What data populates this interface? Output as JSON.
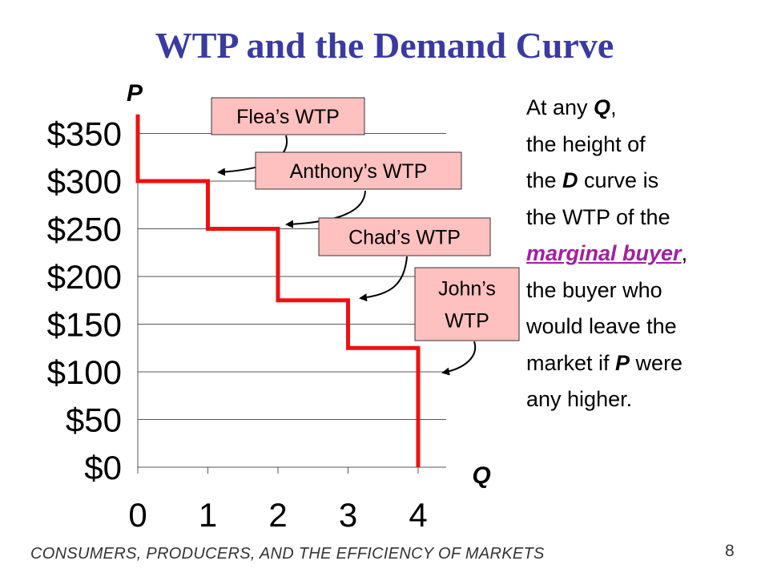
{
  "slide": {
    "title": "WTP and the Demand Curve",
    "footer": "CONSUMERS, PRODUCERS, AND THE EFFICIENCY OF MARKETS",
    "slide_number": "8"
  },
  "explanation": {
    "line1_pre": "At any ",
    "line1_q": "Q",
    "line1_post": ",",
    "line2": "the height of",
    "line3_pre": "the ",
    "line3_d": "D",
    "line3_post": " curve is",
    "line4": "the WTP of the",
    "line5_link": "marginal buyer",
    "line5_post": ",",
    "line6": "the buyer who",
    "line7": "would leave the",
    "line8_pre": "market if ",
    "line8_p": "P",
    "line8_post": " were",
    "line9": "any higher."
  },
  "colors": {
    "title": "#3a3aa0",
    "curve": "#ee1111",
    "label_fill": "#ffc0c0",
    "link": "#a020a0"
  },
  "chart_data": {
    "type": "line",
    "step": true,
    "title": "",
    "xlabel": "Q",
    "ylabel": "P",
    "xlim": [
      0,
      4.4
    ],
    "ylim": [
      0,
      350
    ],
    "xticks": [
      0,
      1,
      2,
      3,
      4
    ],
    "xtick_labels": [
      "0",
      "1",
      "2",
      "3",
      "4"
    ],
    "yticks": [
      0,
      50,
      100,
      150,
      200,
      250,
      300,
      350
    ],
    "ytick_labels": [
      "$0",
      "$50",
      "$100",
      "$150",
      "$200",
      "$250",
      "$300",
      "$350"
    ],
    "grid": "horizontal",
    "series": [
      {
        "points": [
          [
            0,
            370
          ],
          [
            0,
            300
          ],
          [
            1,
            300
          ],
          [
            1,
            250
          ],
          [
            2,
            250
          ],
          [
            2,
            175
          ],
          [
            3,
            175
          ],
          [
            3,
            125
          ],
          [
            4,
            125
          ],
          [
            4,
            0
          ]
        ]
      }
    ],
    "annotations": [
      {
        "text": "Flea’s WTP",
        "q": 0.5,
        "p": 300
      },
      {
        "text": "Anthony’s WTP",
        "q": 1.5,
        "p": 250
      },
      {
        "text": "Chad’s WTP",
        "q": 2.5,
        "p": 175
      },
      {
        "text": "John’s\nWTP",
        "q": 3.5,
        "p": 125
      }
    ]
  }
}
